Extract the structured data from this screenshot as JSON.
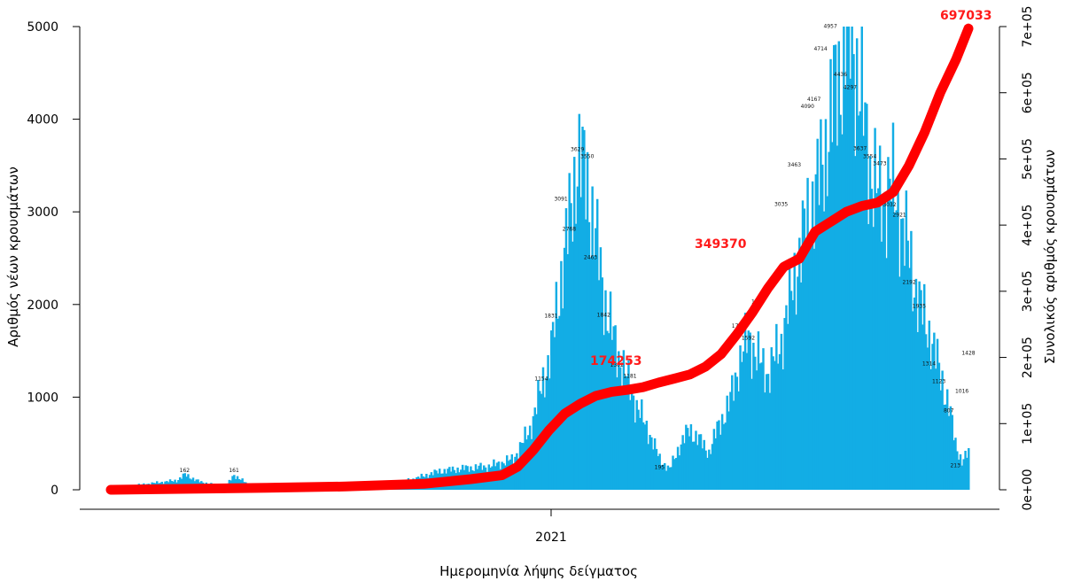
{
  "chart_data": {
    "type": "bar",
    "xlabel": "Ημερομηνία λήψης δείγματος",
    "ylabel": "Αριθμός νέων κρουσμάτων",
    "y2label": "Συνολικός αριθμός κρουσμάτων",
    "ylim": [
      0,
      5000
    ],
    "y_ticks": [
      "0",
      "1000",
      "2000",
      "3000",
      "4000",
      "5000"
    ],
    "y2lim": [
      0,
      700000
    ],
    "y2_ticks": [
      "0e+00",
      "1e+05",
      "2e+05",
      "3e+05",
      "4e+05",
      "5e+05",
      "6e+05",
      "7e+05"
    ],
    "x_tick_label": "2021",
    "x_tick_day_index": 268,
    "day_count": 523,
    "grid": false,
    "series": [
      {
        "type": "bar",
        "color": "#12ade5",
        "daily_anchors": [
          [
            0,
            20
          ],
          [
            20,
            60
          ],
          [
            40,
            100
          ],
          [
            45,
            162
          ],
          [
            55,
            80
          ],
          [
            70,
            40
          ],
          [
            75,
            161
          ],
          [
            85,
            40
          ],
          [
            130,
            45
          ],
          [
            150,
            45
          ],
          [
            170,
            60
          ],
          [
            185,
            120
          ],
          [
            200,
            200
          ],
          [
            215,
            230
          ],
          [
            230,
            250
          ],
          [
            245,
            330
          ],
          [
            255,
            650
          ],
          [
            262,
            1100
          ],
          [
            268,
            1500
          ],
          [
            274,
            2300
          ],
          [
            280,
            3000
          ],
          [
            284,
            3600
          ],
          [
            290,
            3300
          ],
          [
            296,
            2600
          ],
          [
            302,
            1900
          ],
          [
            308,
            1500
          ],
          [
            314,
            1200
          ],
          [
            320,
            900
          ],
          [
            328,
            600
          ],
          [
            334,
            330
          ],
          [
            340,
            220
          ],
          [
            346,
            470
          ],
          [
            352,
            650
          ],
          [
            358,
            540
          ],
          [
            364,
            400
          ],
          [
            370,
            700
          ],
          [
            376,
            900
          ],
          [
            382,
            1350
          ],
          [
            388,
            1650
          ],
          [
            394,
            1400
          ],
          [
            400,
            1250
          ],
          [
            408,
            1600
          ],
          [
            416,
            2300
          ],
          [
            424,
            2900
          ],
          [
            432,
            3400
          ],
          [
            440,
            4200
          ],
          [
            446,
            4700
          ],
          [
            450,
            4957
          ],
          [
            456,
            4300
          ],
          [
            462,
            3500
          ],
          [
            468,
            3100
          ],
          [
            474,
            3300
          ],
          [
            480,
            3000
          ],
          [
            486,
            2500
          ],
          [
            492,
            2000
          ],
          [
            498,
            1700
          ],
          [
            504,
            1300
          ],
          [
            510,
            900
          ],
          [
            514,
            500
          ],
          [
            518,
            300
          ],
          [
            522,
            400
          ]
        ],
        "labels": [
          [
            45,
            162
          ],
          [
            75,
            161
          ],
          [
            284,
            3629
          ],
          [
            290,
            3550
          ],
          [
            274,
            3091
          ],
          [
            279,
            2768
          ],
          [
            292,
            2463
          ],
          [
            268,
            1831
          ],
          [
            262,
            1154
          ],
          [
            300,
            1842
          ],
          [
            308,
            1302
          ],
          [
            316,
            1181
          ],
          [
            334,
            195
          ],
          [
            382,
            1722
          ],
          [
            388,
            1592
          ],
          [
            394,
            1985
          ],
          [
            408,
            3035
          ],
          [
            416,
            3463
          ],
          [
            424,
            4090
          ],
          [
            428,
            4167
          ],
          [
            432,
            4714
          ],
          [
            438,
            4957
          ],
          [
            444,
            4436
          ],
          [
            450,
            4297
          ],
          [
            456,
            3637
          ],
          [
            462,
            3554
          ],
          [
            468,
            3473
          ],
          [
            474,
            3032
          ],
          [
            480,
            2921
          ],
          [
            486,
            2192
          ],
          [
            492,
            1935
          ],
          [
            498,
            1314
          ],
          [
            504,
            1123
          ],
          [
            510,
            807
          ],
          [
            514,
            213
          ],
          [
            518,
            1016
          ],
          [
            522,
            1428
          ]
        ]
      },
      {
        "type": "line",
        "color": "#ff0000",
        "axis": "right",
        "cumulative_anchors": [
          [
            0,
            0
          ],
          [
            50,
            1500
          ],
          [
            100,
            3000
          ],
          [
            150,
            5000
          ],
          [
            200,
            9000
          ],
          [
            230,
            16000
          ],
          [
            250,
            22000
          ],
          [
            260,
            35000
          ],
          [
            270,
            60000
          ],
          [
            280,
            90000
          ],
          [
            290,
            115000
          ],
          [
            300,
            130000
          ],
          [
            310,
            142000
          ],
          [
            320,
            148000
          ],
          [
            330,
            151000
          ],
          [
            340,
            155000
          ],
          [
            350,
            162000
          ],
          [
            360,
            168000
          ],
          [
            370,
            174253
          ],
          [
            380,
            186000
          ],
          [
            390,
            205000
          ],
          [
            400,
            235000
          ],
          [
            410,
            268000
          ],
          [
            420,
            305000
          ],
          [
            430,
            337000
          ],
          [
            440,
            349370
          ],
          [
            450,
            390000
          ],
          [
            460,
            405000
          ],
          [
            470,
            420000
          ],
          [
            480,
            429000
          ],
          [
            490,
            434000
          ],
          [
            500,
            450000
          ],
          [
            510,
            490000
          ],
          [
            520,
            540000
          ],
          [
            530,
            600000
          ],
          [
            540,
            650000
          ],
          [
            548,
            697033
          ]
        ]
      }
    ],
    "cumulative_labels": [
      "174253",
      "349370",
      "697033"
    ]
  }
}
